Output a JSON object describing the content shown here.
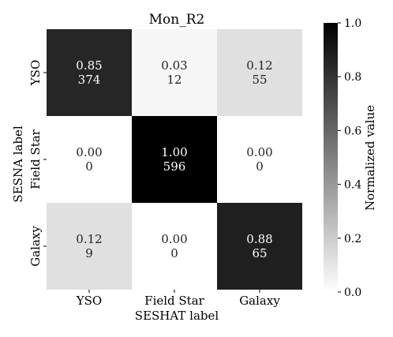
{
  "chart_data": {
    "type": "heatmap",
    "title": "Mon_R2",
    "xlabel": "SESHAT label",
    "ylabel": "SESNA label",
    "x_categories": [
      "YSO",
      "Field Star",
      "Galaxy"
    ],
    "y_categories": [
      "YSO",
      "Field Star",
      "Galaxy"
    ],
    "normalized": [
      [
        0.85,
        0.03,
        0.12
      ],
      [
        0.0,
        1.0,
        0.0
      ],
      [
        0.12,
        0.0,
        0.88
      ]
    ],
    "counts": [
      [
        374,
        12,
        55
      ],
      [
        0,
        596,
        0
      ],
      [
        9,
        0,
        65
      ]
    ],
    "colorbar": {
      "label": "Normalized value",
      "range": [
        0.0,
        1.0
      ],
      "ticks": [
        "0.0",
        "0.2",
        "0.4",
        "0.6",
        "0.8",
        "1.0"
      ],
      "colormap": "grayscale, white (0) to black (1)"
    }
  }
}
